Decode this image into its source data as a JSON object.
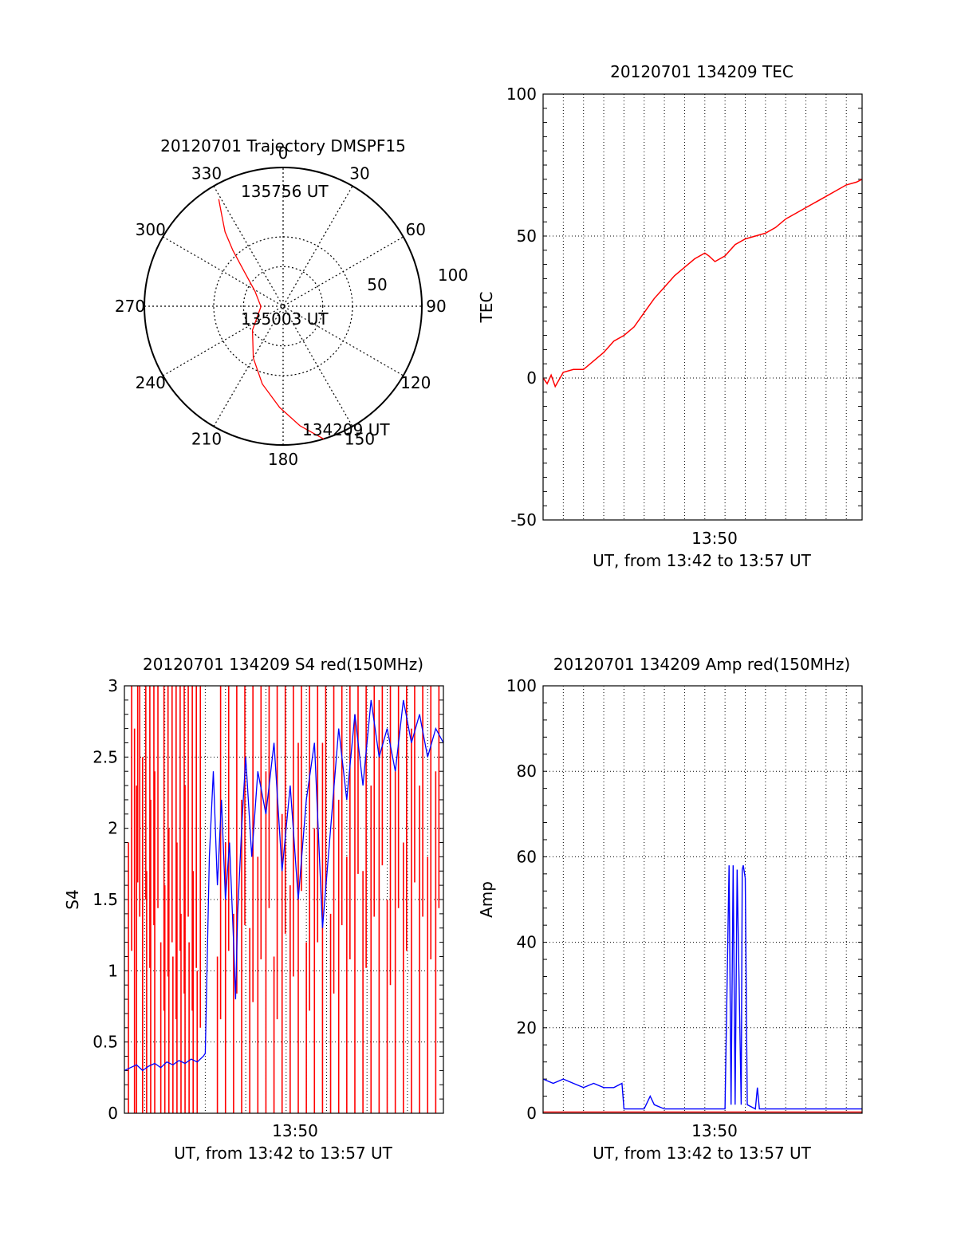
{
  "chart_data": [
    {
      "type": "polar",
      "title": "20120701 Trajectory DMSPF15",
      "angle_labels": [
        "0",
        "30",
        "60",
        "90",
        "120",
        "150",
        "180",
        "210",
        "240",
        "270",
        "300",
        "330"
      ],
      "radial_labels": [
        "50",
        "100"
      ],
      "rlim": [
        0,
        100
      ],
      "grid": true,
      "trajectory": {
        "color": "#ff0000",
        "points": [
          {
            "az": 163,
            "el": 100
          },
          {
            "az": 172,
            "el": 87
          },
          {
            "az": 182,
            "el": 73
          },
          {
            "az": 195,
            "el": 58
          },
          {
            "az": 210,
            "el": 43
          },
          {
            "az": 232,
            "el": 28
          },
          {
            "az": 269,
            "el": 16
          },
          {
            "az": 298,
            "el": 23
          },
          {
            "az": 312,
            "el": 38
          },
          {
            "az": 318,
            "el": 54
          },
          {
            "az": 322,
            "el": 68
          },
          {
            "az": 326,
            "el": 79
          },
          {
            "az": 329,
            "el": 90
          }
        ]
      },
      "annotations": [
        "135756 UT",
        "135003 UT",
        "134209 UT"
      ]
    },
    {
      "type": "line",
      "title": "20120701 134209 TEC",
      "ylabel": "TEC",
      "xlabel": "UT, from 13:42 to 13:57 UT",
      "x_tick_label": "13:50",
      "yticks": [
        "100",
        "50",
        "0",
        "-50"
      ],
      "ylim": [
        -50,
        100
      ],
      "xlim": [
        0,
        15.78
      ],
      "grid": true,
      "series": [
        {
          "color": "#ff0000",
          "x": [
            0,
            0.2,
            0.4,
            0.6,
            1.0,
            1.5,
            2.0,
            2.5,
            3.0,
            3.5,
            4.0,
            4.5,
            5.0,
            5.5,
            6.0,
            6.5,
            7.0,
            7.5,
            8.0,
            8.2,
            8.5,
            9.0,
            9.5,
            10.0,
            10.5,
            11.0,
            11.5,
            12.0,
            12.5,
            13.0,
            13.5,
            14.0,
            14.5,
            15.0,
            15.5,
            15.78
          ],
          "y": [
            0,
            -2,
            1,
            -3,
            2,
            3,
            3,
            6,
            9,
            13,
            15,
            18,
            23,
            28,
            32,
            36,
            39,
            42,
            44,
            43,
            41,
            43,
            47,
            49,
            50,
            51,
            53,
            56,
            58,
            60,
            62,
            64,
            66,
            68,
            69,
            70
          ]
        }
      ]
    },
    {
      "type": "line",
      "title": "20120701 134209 S4 red(150MHz)",
      "ylabel": "S4",
      "xlabel": "UT, from 13:42 to 13:57 UT",
      "x_tick_label": "13:50",
      "yticks": [
        "3",
        "2.5",
        "2",
        "1.5",
        "1",
        "0.5",
        "0"
      ],
      "ylim": [
        0,
        3
      ],
      "xlim": [
        0,
        15.78
      ],
      "grid": true,
      "series": [
        {
          "color": "#ff0000",
          "x": [
            0.2,
            0.5,
            0.6,
            0.9,
            1.1,
            1.3,
            1.5,
            1.8,
            2.0,
            2.2,
            2.4,
            2.6,
            2.8,
            3.0,
            3.2,
            3.4,
            3.6,
            4.6,
            5.0,
            5.4,
            5.8,
            6.2,
            6.6,
            7.0,
            7.4,
            7.8,
            8.2,
            8.6,
            9.0,
            9.4,
            9.8,
            10.2,
            10.6,
            11.0,
            11.4,
            11.8,
            12.2,
            12.6,
            13.0,
            13.4,
            13.8,
            14.2,
            14.6,
            15.0,
            15.4
          ],
          "y": [
            1.9,
            2.7,
            2.3,
            2.5,
            1.7,
            2.2,
            2.4,
            1.2,
            1.6,
            2.0,
            1.1,
            1.9,
            1.4,
            2.3,
            1.2,
            1.7,
            1.0,
            1.1,
            1.9,
            1.4,
            2.2,
            1.3,
            1.8,
            2.4,
            1.1,
            2.1,
            1.6,
            2.6,
            1.2,
            2.0,
            2.6,
            1.4,
            2.2,
            1.8,
            2.8,
            1.7,
            2.3,
            2.9,
            1.5,
            2.4,
            1.9,
            2.7,
            2.3,
            1.8,
            2.4
          ]
        },
        {
          "color": "#0000ff",
          "x": [
            0,
            0.3,
            0.6,
            0.9,
            1.2,
            1.5,
            1.8,
            2.1,
            2.4,
            2.7,
            3.0,
            3.3,
            3.6,
            3.9,
            4.0,
            4.2,
            4.4,
            4.6,
            4.8,
            5.0,
            5.2,
            5.4,
            5.5,
            5.6,
            5.8,
            6.0,
            6.3,
            6.6,
            7.0,
            7.4,
            7.8,
            8.2,
            8.6,
            9.0,
            9.4,
            9.8,
            10.2,
            10.6,
            11.0,
            11.4,
            11.8,
            12.2,
            12.6,
            13.0,
            13.4,
            13.8,
            14.2,
            14.6,
            15.0,
            15.4,
            15.78
          ],
          "y": [
            0.3,
            0.32,
            0.34,
            0.3,
            0.33,
            0.35,
            0.32,
            0.36,
            0.34,
            0.37,
            0.35,
            0.38,
            0.36,
            0.4,
            0.42,
            1.8,
            2.4,
            1.6,
            2.2,
            1.5,
            1.9,
            1.2,
            0.8,
            1.4,
            2.0,
            2.5,
            1.8,
            2.4,
            2.1,
            2.6,
            1.7,
            2.3,
            1.5,
            2.2,
            2.6,
            1.3,
            2.0,
            2.7,
            2.2,
            2.8,
            2.3,
            2.9,
            2.5,
            2.7,
            2.4,
            2.9,
            2.6,
            2.8,
            2.5,
            2.7,
            2.6
          ]
        }
      ]
    },
    {
      "type": "line",
      "title": "20120701 134209 Amp red(150MHz)",
      "ylabel": "Amp",
      "xlabel": "UT, from 13:42 to 13:57 UT",
      "x_tick_label": "13:50",
      "yticks": [
        "100",
        "80",
        "60",
        "40",
        "20",
        "0"
      ],
      "ylim": [
        0,
        100
      ],
      "xlim": [
        0,
        15.78
      ],
      "grid": true,
      "series": [
        {
          "color": "#0000ff",
          "x": [
            0,
            0.5,
            1.0,
            1.5,
            2.0,
            2.5,
            3.0,
            3.5,
            3.9,
            4.0,
            4.5,
            5.0,
            5.3,
            5.5,
            6.0,
            6.5,
            7.0,
            7.5,
            8.0,
            8.5,
            9.0,
            9.2,
            9.3,
            9.4,
            9.5,
            9.6,
            9.8,
            9.85,
            9.9,
            10.0,
            10.1,
            10.5,
            10.6,
            10.7,
            11.0,
            11.5,
            12.0,
            12.5,
            13.0,
            13.5,
            14.0,
            14.5,
            15.0,
            15.5,
            15.78
          ],
          "y": [
            8,
            7,
            8,
            7,
            6,
            7,
            6,
            6,
            7,
            1,
            1,
            1,
            4,
            2,
            1,
            1,
            1,
            1,
            1,
            1,
            1,
            58,
            2,
            58,
            2,
            57,
            2,
            57,
            58,
            55,
            2,
            1,
            6,
            1,
            1,
            1,
            1,
            1,
            1,
            1,
            1,
            1,
            1,
            1,
            1
          ]
        },
        {
          "color": "#ff0000",
          "x": [
            0,
            15.78
          ],
          "y": [
            0.3,
            0.3
          ]
        }
      ]
    }
  ]
}
